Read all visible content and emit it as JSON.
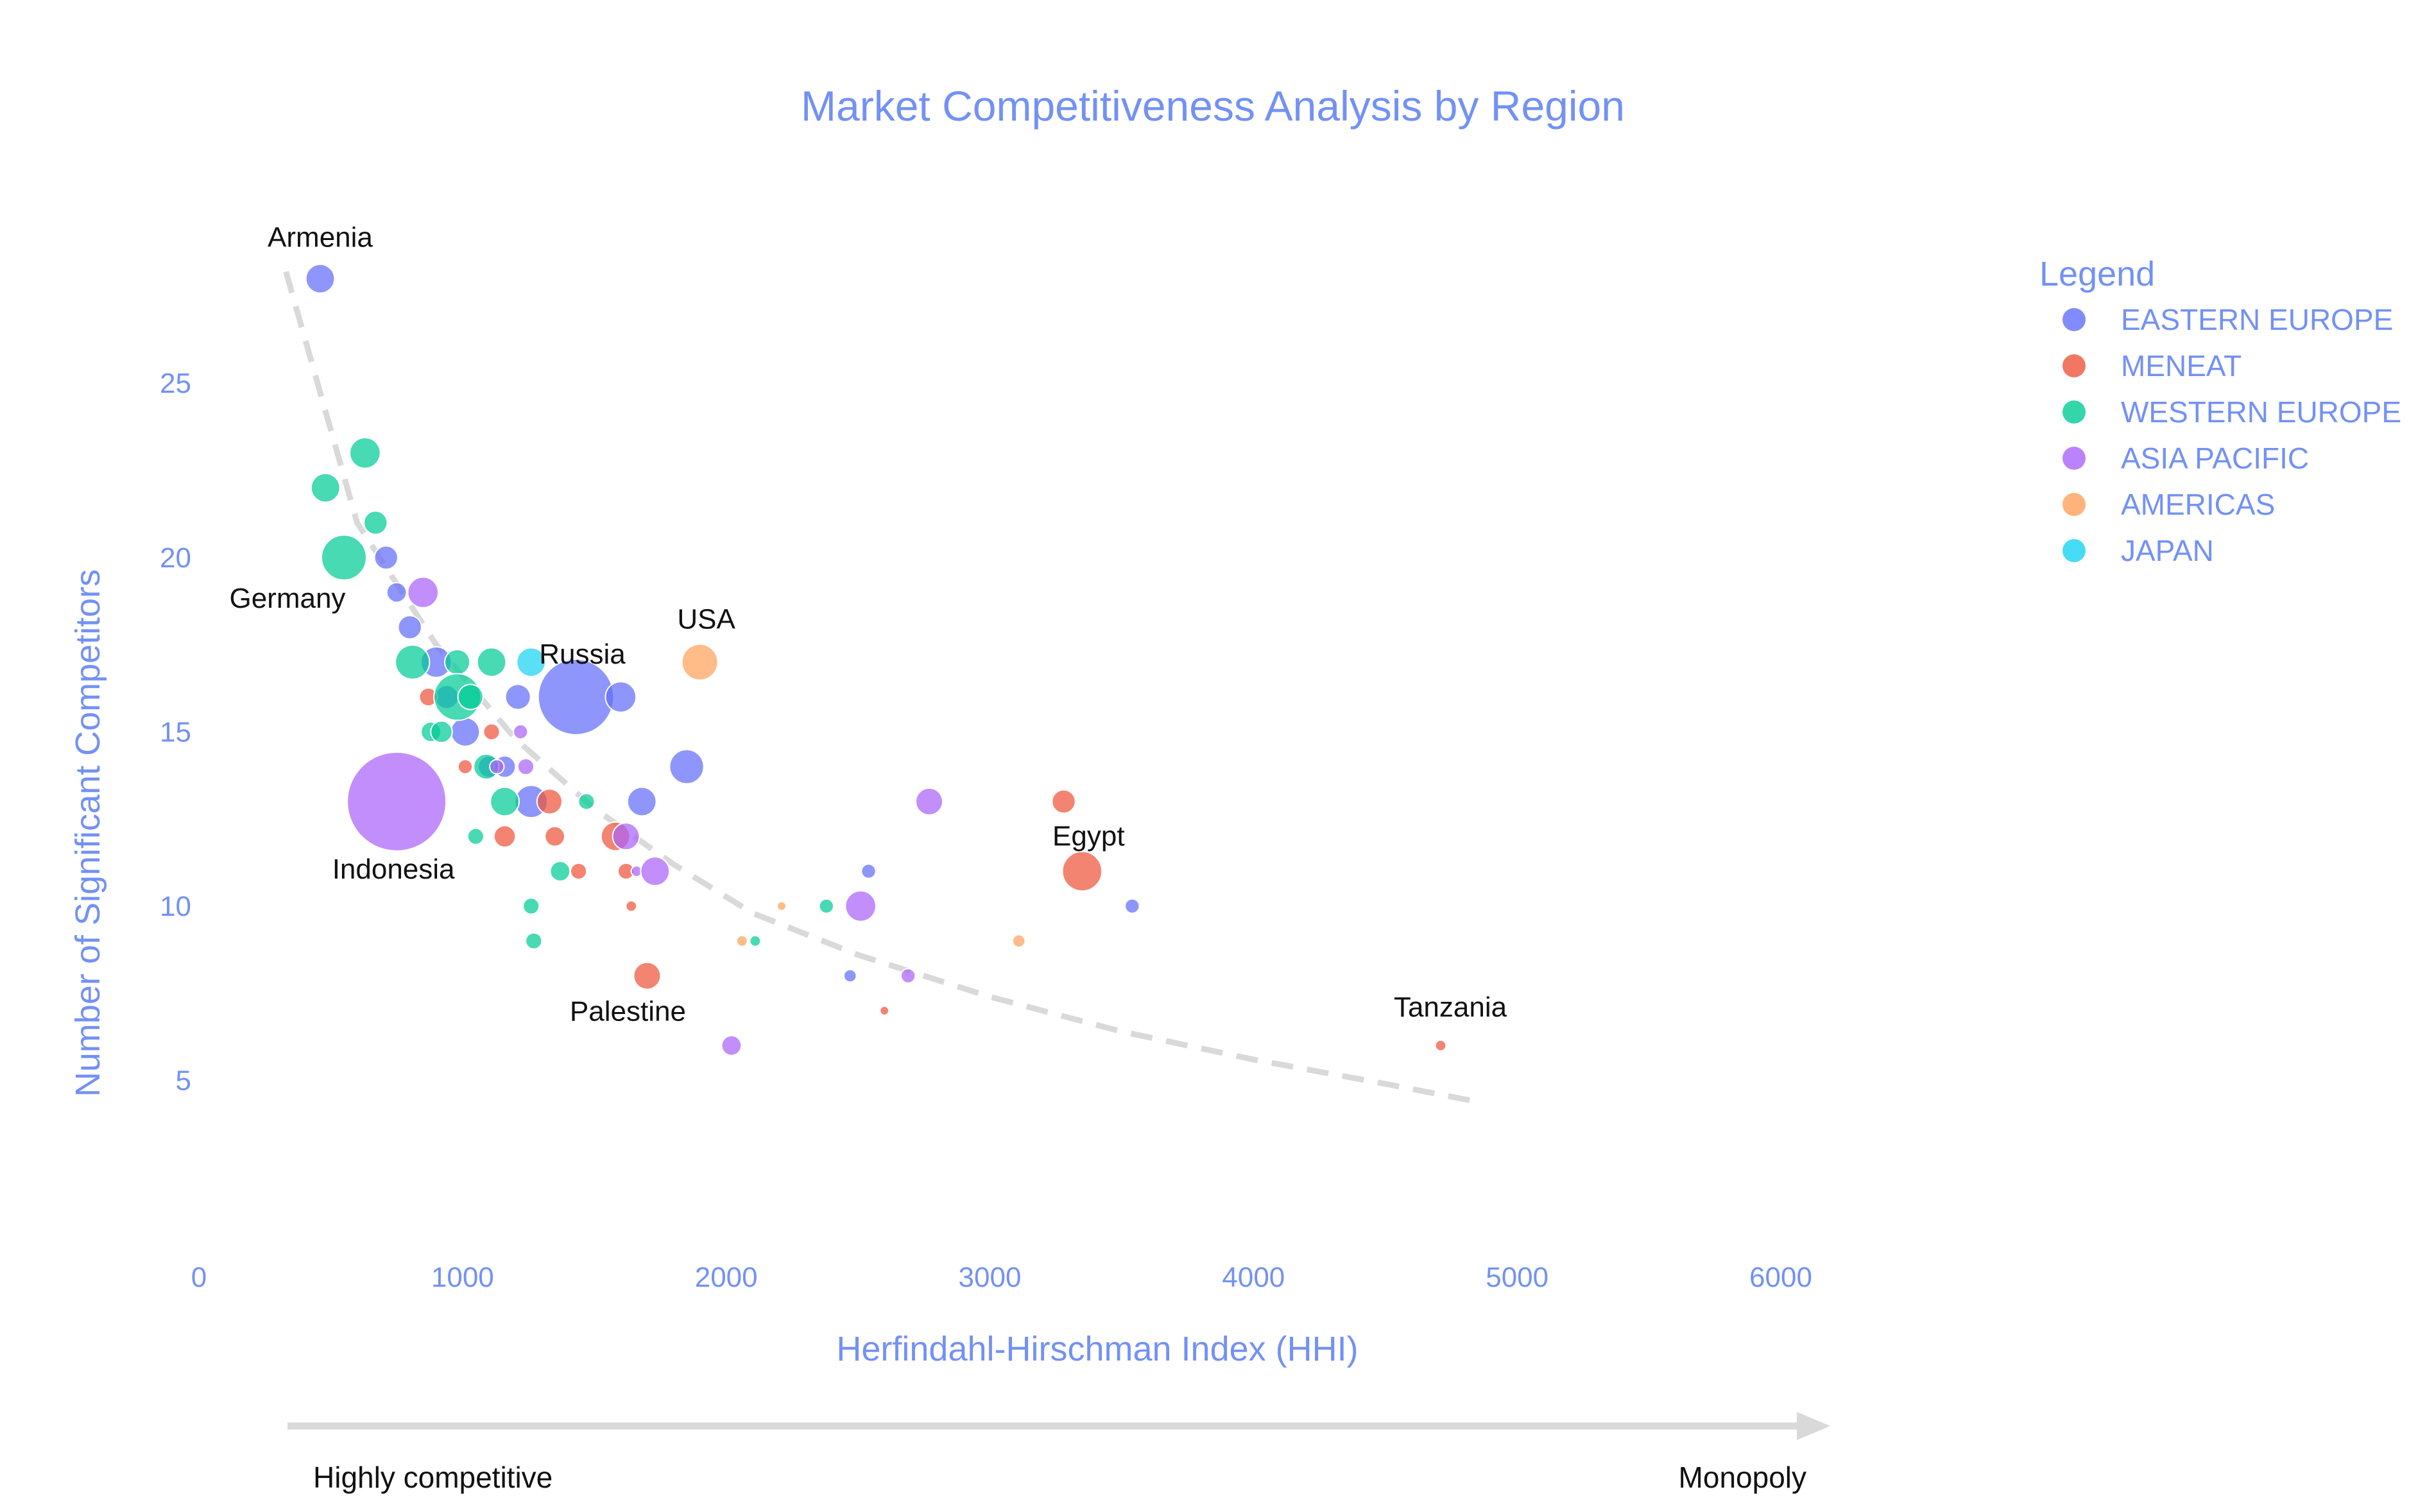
{
  "chart_data": {
    "type": "scatter",
    "title": "Market Competitiveness Analysis by Region",
    "xlabel": "Herfindahl-Hirschman Index (HHI)",
    "ylabel": "Number of Significant Competitors",
    "xlim": [
      0,
      6000
    ],
    "ylim": [
      0,
      29
    ],
    "xticks": [
      "0",
      "1000",
      "2000",
      "3000",
      "4000",
      "5000",
      "6000"
    ],
    "yticks": [
      "5",
      "10",
      "15",
      "20",
      "25"
    ],
    "grid": false,
    "legend": {
      "title": "Legend",
      "placement": "right"
    },
    "scale_labels": {
      "left": "Highly competitive",
      "right": "Monopoly"
    },
    "series": [
      {
        "name": "EASTERN EUROPE",
        "color": "#636efa",
        "points": [
          {
            "x": 460,
            "y": 28,
            "size": 1.6
          },
          {
            "x": 710,
            "y": 20,
            "size": 1.3
          },
          {
            "x": 750,
            "y": 19,
            "size": 1.1
          },
          {
            "x": 800,
            "y": 18,
            "size": 1.3
          },
          {
            "x": 900,
            "y": 17,
            "size": 1.7
          },
          {
            "x": 940,
            "y": 16,
            "size": 1.3
          },
          {
            "x": 1010,
            "y": 15,
            "size": 1.6
          },
          {
            "x": 1100,
            "y": 14,
            "size": 1.2
          },
          {
            "x": 1160,
            "y": 14,
            "size": 1.2
          },
          {
            "x": 1210,
            "y": 16,
            "size": 1.4
          },
          {
            "x": 1260,
            "y": 13,
            "size": 1.8
          },
          {
            "x": 1430,
            "y": 16,
            "size": 4.2
          },
          {
            "x": 1600,
            "y": 16,
            "size": 1.7
          },
          {
            "x": 1680,
            "y": 13,
            "size": 1.6
          },
          {
            "x": 1850,
            "y": 14,
            "size": 1.9
          },
          {
            "x": 2540,
            "y": 11,
            "size": 0.8
          },
          {
            "x": 2470,
            "y": 8,
            "size": 0.7
          },
          {
            "x": 3540,
            "y": 10,
            "size": 0.8
          }
        ]
      },
      {
        "name": "MENEAT",
        "color": "#ef553b",
        "points": [
          {
            "x": 870,
            "y": 16,
            "size": 1.0
          },
          {
            "x": 1010,
            "y": 14,
            "size": 0.8
          },
          {
            "x": 1110,
            "y": 15,
            "size": 0.9
          },
          {
            "x": 1160,
            "y": 12,
            "size": 1.2
          },
          {
            "x": 1330,
            "y": 13,
            "size": 1.4
          },
          {
            "x": 1350,
            "y": 12,
            "size": 1.1
          },
          {
            "x": 1440,
            "y": 11,
            "size": 0.9
          },
          {
            "x": 1580,
            "y": 12,
            "size": 1.6
          },
          {
            "x": 1620,
            "y": 11,
            "size": 0.9
          },
          {
            "x": 1640,
            "y": 10,
            "size": 0.6
          },
          {
            "x": 1700,
            "y": 8,
            "size": 1.5
          },
          {
            "x": 2600,
            "y": 7,
            "size": 0.5
          },
          {
            "x": 3280,
            "y": 13,
            "size": 1.3
          },
          {
            "x": 3350,
            "y": 11,
            "size": 2.2
          },
          {
            "x": 4710,
            "y": 6,
            "size": 0.6
          }
        ]
      },
      {
        "name": "WESTERN EUROPE",
        "color": "#00cc96",
        "points": [
          {
            "x": 480,
            "y": 22,
            "size": 1.6
          },
          {
            "x": 630,
            "y": 23,
            "size": 1.7
          },
          {
            "x": 670,
            "y": 21,
            "size": 1.3
          },
          {
            "x": 550,
            "y": 20,
            "size": 2.5
          },
          {
            "x": 810,
            "y": 17,
            "size": 1.9
          },
          {
            "x": 880,
            "y": 15,
            "size": 1.1
          },
          {
            "x": 920,
            "y": 15,
            "size": 1.2
          },
          {
            "x": 980,
            "y": 17,
            "size": 1.4
          },
          {
            "x": 980,
            "y": 16,
            "size": 2.6
          },
          {
            "x": 1030,
            "y": 16,
            "size": 1.4
          },
          {
            "x": 1050,
            "y": 12,
            "size": 0.9
          },
          {
            "x": 1090,
            "y": 14,
            "size": 1.4
          },
          {
            "x": 1110,
            "y": 17,
            "size": 1.6
          },
          {
            "x": 1160,
            "y": 13,
            "size": 1.6
          },
          {
            "x": 1260,
            "y": 10,
            "size": 0.9
          },
          {
            "x": 1270,
            "y": 9,
            "size": 0.9
          },
          {
            "x": 1370,
            "y": 11,
            "size": 1.1
          },
          {
            "x": 1470,
            "y": 13,
            "size": 0.9
          },
          {
            "x": 2110,
            "y": 9,
            "size": 0.6
          },
          {
            "x": 2380,
            "y": 10,
            "size": 0.8
          }
        ]
      },
      {
        "name": "ASIA PACIFIC",
        "color": "#ab63fa",
        "points": [
          {
            "x": 750,
            "y": 13,
            "size": 5.5
          },
          {
            "x": 850,
            "y": 19,
            "size": 1.7
          },
          {
            "x": 1130,
            "y": 14,
            "size": 0.8
          },
          {
            "x": 1220,
            "y": 15,
            "size": 0.8
          },
          {
            "x": 1240,
            "y": 14,
            "size": 0.9
          },
          {
            "x": 1620,
            "y": 12,
            "size": 1.5
          },
          {
            "x": 1660,
            "y": 11,
            "size": 0.6
          },
          {
            "x": 1730,
            "y": 11,
            "size": 1.6
          },
          {
            "x": 2020,
            "y": 6,
            "size": 1.1
          },
          {
            "x": 2510,
            "y": 10,
            "size": 1.7
          },
          {
            "x": 2690,
            "y": 8,
            "size": 0.8
          },
          {
            "x": 2770,
            "y": 13,
            "size": 1.5
          }
        ]
      },
      {
        "name": "AMERICAS",
        "color": "#ffa15a",
        "points": [
          {
            "x": 1900,
            "y": 17,
            "size": 2.0
          },
          {
            "x": 2060,
            "y": 9,
            "size": 0.6
          },
          {
            "x": 2210,
            "y": 10,
            "size": 0.5
          },
          {
            "x": 3110,
            "y": 9,
            "size": 0.7
          }
        ]
      },
      {
        "name": "JAPAN",
        "color": "#19d3f3",
        "points": [
          {
            "x": 1260,
            "y": 17,
            "size": 1.6
          }
        ]
      }
    ],
    "annotations": [
      {
        "text": "Armenia",
        "x": 460,
        "y": 28
      },
      {
        "text": "Germany",
        "x": 550,
        "y": 20
      },
      {
        "text": "Russia",
        "x": 1430,
        "y": 16
      },
      {
        "text": "USA",
        "x": 1900,
        "y": 17
      },
      {
        "text": "Indonesia",
        "x": 750,
        "y": 13
      },
      {
        "text": "Egypt",
        "x": 3350,
        "y": 11
      },
      {
        "text": "Palestine",
        "x": 1700,
        "y": 8
      },
      {
        "text": "Tanzania",
        "x": 4710,
        "y": 6
      }
    ],
    "trend_line": {
      "style": "dashed",
      "color": "#d9d9d9",
      "points": [
        {
          "x": 330,
          "y": 28.2
        },
        {
          "x": 600,
          "y": 21
        },
        {
          "x": 900,
          "y": 17.5
        },
        {
          "x": 1200,
          "y": 14.8
        },
        {
          "x": 1500,
          "y": 12.8
        },
        {
          "x": 1800,
          "y": 11.2
        },
        {
          "x": 2100,
          "y": 9.8
        },
        {
          "x": 2500,
          "y": 8.6
        },
        {
          "x": 3000,
          "y": 7.4
        },
        {
          "x": 3500,
          "y": 6.4
        },
        {
          "x": 4000,
          "y": 5.6
        },
        {
          "x": 4500,
          "y": 4.9
        },
        {
          "x": 4840,
          "y": 4.4
        }
      ]
    }
  }
}
